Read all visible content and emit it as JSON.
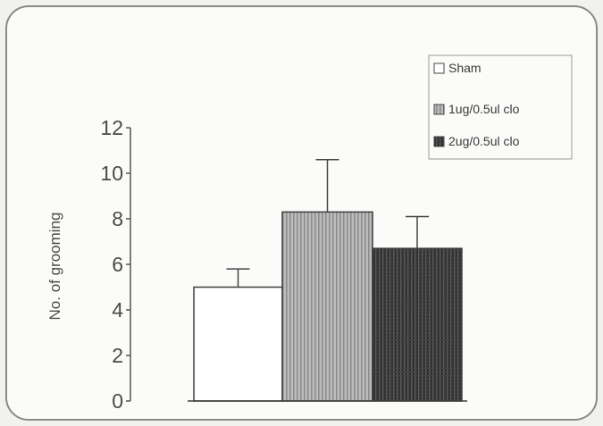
{
  "chart_data": {
    "type": "bar",
    "title": "",
    "xlabel": "",
    "ylabel": "No. of grooming",
    "ylim": [
      0,
      12
    ],
    "yticks": [
      "0",
      "2",
      "4",
      "6",
      "8",
      "10",
      "12"
    ],
    "legend_position": "top-right",
    "series": [
      {
        "name": "Sham",
        "value": 5.0,
        "error": 0.8,
        "fill": "#ffffff"
      },
      {
        "name": "1ug/0.5ul clo",
        "value": 8.3,
        "error": 2.3,
        "fill": "#b5b5b5"
      },
      {
        "name": "2ug/0.5ul clo",
        "value": 6.7,
        "error": 1.4,
        "fill": "#3a3a3a"
      }
    ]
  }
}
